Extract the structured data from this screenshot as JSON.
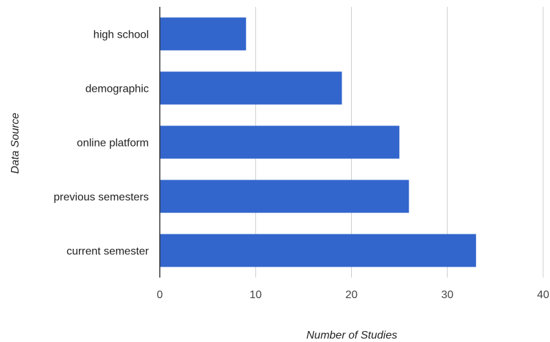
{
  "chart_data": {
    "type": "bar",
    "orientation": "horizontal",
    "categories": [
      "high school",
      "demographic",
      "online platform",
      "previous semesters",
      "current semester"
    ],
    "values": [
      9,
      19,
      25,
      26,
      33
    ],
    "xlabel": "Number of Studies",
    "ylabel": "Data Source",
    "xlim": [
      0,
      40
    ],
    "xticks": [
      0,
      10,
      20,
      30,
      40
    ],
    "grid": true,
    "bar_color": "#3366cc",
    "grid_color": "#cccccc",
    "axis_color": "#333333"
  }
}
